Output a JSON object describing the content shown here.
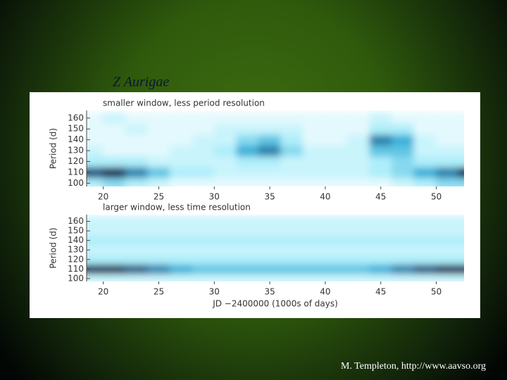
{
  "title": "Z Aurigae",
  "footer": "M. Templeton, http://www.aavso.org",
  "chart_data": [
    {
      "type": "heatmap",
      "title": "smaller window, less period resolution",
      "ylabel": "Period (d)",
      "x": [
        19,
        21,
        23,
        25,
        27,
        29,
        31,
        33,
        35,
        37,
        39,
        41,
        43,
        45,
        47,
        49,
        51,
        53
      ],
      "y": [
        100,
        110,
        120,
        130,
        140,
        150,
        160
      ],
      "values": [
        [
          0.3,
          0.4,
          0.3,
          0.2,
          0.1,
          0.1,
          0.1,
          0.1,
          0.1,
          0.1,
          0.1,
          0.1,
          0.1,
          0.1,
          0.2,
          0.3,
          0.4,
          0.4
        ],
        [
          0.8,
          0.9,
          0.7,
          0.5,
          0.3,
          0.3,
          0.2,
          0.2,
          0.2,
          0.2,
          0.2,
          0.2,
          0.2,
          0.3,
          0.4,
          0.6,
          0.7,
          0.9
        ],
        [
          0.3,
          0.3,
          0.3,
          0.2,
          0.2,
          0.2,
          0.2,
          0.3,
          0.3,
          0.2,
          0.2,
          0.2,
          0.2,
          0.3,
          0.4,
          0.3,
          0.3,
          0.3
        ],
        [
          0.2,
          0.1,
          0.1,
          0.1,
          0.2,
          0.2,
          0.3,
          0.6,
          0.7,
          0.4,
          0.2,
          0.2,
          0.2,
          0.5,
          0.5,
          0.2,
          0.2,
          0.2
        ],
        [
          0.1,
          0.1,
          0.1,
          0.1,
          0.1,
          0.2,
          0.2,
          0.4,
          0.5,
          0.3,
          0.1,
          0.1,
          0.2,
          0.7,
          0.6,
          0.2,
          0.1,
          0.1
        ],
        [
          0.1,
          0.1,
          0.2,
          0.1,
          0.1,
          0.1,
          0.2,
          0.2,
          0.2,
          0.2,
          0.1,
          0.1,
          0.1,
          0.3,
          0.3,
          0.1,
          0.1,
          0.1
        ],
        [
          0.1,
          0.2,
          0.1,
          0.1,
          0.1,
          0.1,
          0.1,
          0.1,
          0.1,
          0.1,
          0.1,
          0.1,
          0.1,
          0.2,
          0.1,
          0.1,
          0.1,
          0.1
        ]
      ],
      "xlim": [
        18.5,
        52.5
      ],
      "ylim": [
        97,
        167
      ],
      "xticks": [
        20,
        25,
        30,
        35,
        40,
        45,
        50
      ],
      "yticks": [
        100,
        110,
        120,
        130,
        140,
        150,
        160
      ]
    },
    {
      "type": "heatmap",
      "title": "larger window, less time resolution",
      "ylabel": "Period (d)",
      "xlabel": "JD −2400000 (1000s of days)",
      "x": [
        19,
        21,
        23,
        25,
        27,
        29,
        31,
        33,
        35,
        37,
        39,
        41,
        43,
        45,
        47,
        49,
        51,
        53
      ],
      "y": [
        100,
        110,
        120,
        130,
        140,
        150,
        160
      ],
      "values": [
        [
          0.2,
          0.2,
          0.2,
          0.2,
          0.2,
          0.2,
          0.2,
          0.2,
          0.2,
          0.2,
          0.2,
          0.2,
          0.2,
          0.2,
          0.2,
          0.2,
          0.2,
          0.2
        ],
        [
          0.9,
          0.9,
          0.8,
          0.7,
          0.6,
          0.5,
          0.5,
          0.5,
          0.5,
          0.5,
          0.5,
          0.5,
          0.5,
          0.6,
          0.7,
          0.8,
          0.9,
          0.9
        ],
        [
          0.3,
          0.3,
          0.3,
          0.3,
          0.3,
          0.3,
          0.3,
          0.3,
          0.3,
          0.3,
          0.3,
          0.3,
          0.3,
          0.3,
          0.3,
          0.3,
          0.3,
          0.3
        ],
        [
          0.2,
          0.2,
          0.2,
          0.2,
          0.2,
          0.2,
          0.2,
          0.2,
          0.2,
          0.2,
          0.2,
          0.2,
          0.2,
          0.2,
          0.2,
          0.2,
          0.2,
          0.2
        ],
        [
          0.3,
          0.3,
          0.3,
          0.3,
          0.3,
          0.3,
          0.3,
          0.3,
          0.3,
          0.3,
          0.3,
          0.3,
          0.3,
          0.3,
          0.3,
          0.3,
          0.3,
          0.3
        ],
        [
          0.2,
          0.2,
          0.2,
          0.2,
          0.2,
          0.2,
          0.2,
          0.2,
          0.2,
          0.2,
          0.2,
          0.2,
          0.2,
          0.2,
          0.2,
          0.2,
          0.2,
          0.2
        ],
        [
          0.2,
          0.2,
          0.2,
          0.2,
          0.2,
          0.2,
          0.2,
          0.2,
          0.2,
          0.2,
          0.2,
          0.2,
          0.2,
          0.2,
          0.2,
          0.2,
          0.2,
          0.2
        ]
      ],
      "xlim": [
        18.5,
        52.5
      ],
      "ylim": [
        97,
        167
      ],
      "xticks": [
        20,
        25,
        30,
        35,
        40,
        45,
        50
      ],
      "yticks": [
        100,
        110,
        120,
        130,
        140,
        150,
        160
      ]
    }
  ]
}
